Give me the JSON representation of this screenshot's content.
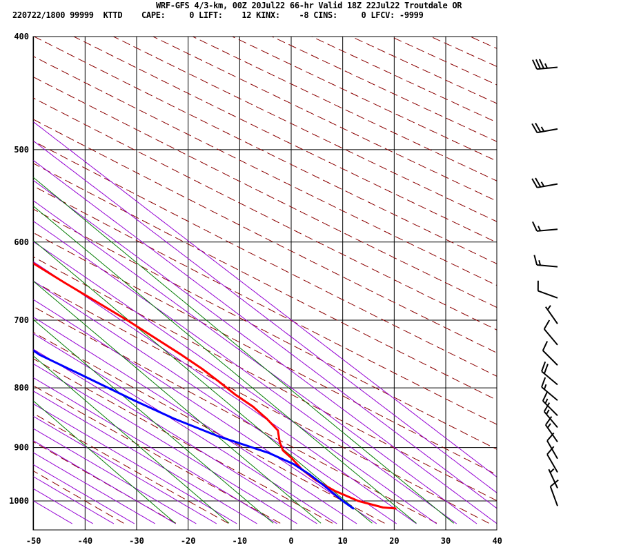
{
  "header": {
    "line1": "WRF-GFS 4/3-km, 00Z 20Jul22 66-hr Valid 18Z 22Jul22 Troutdale OR",
    "line2": "220722/1800 99999  KTTD    CAPE:     0 LIFT:    12 KINX:    -8 CINS:     0 LFCV: -9999"
  },
  "colors": {
    "temperature": "#ff0000",
    "dewpoint": "#0000ff",
    "isotherm": "#000000",
    "dry_adiabat": "#8b0000",
    "moist_adiabat": "#9400d3",
    "mixing_ratio": "#007a00",
    "wind_barb": "#000000"
  },
  "chart_data": {
    "type": "line",
    "chart_kind": "skew-T log-p sounding",
    "x_ticks": [
      "-50",
      "-40",
      "-30",
      "-20",
      "-10",
      "0",
      "10",
      "20",
      "30",
      "40"
    ],
    "y_ticks": [
      "400",
      "500",
      "600",
      "700",
      "800",
      "900",
      "1000"
    ],
    "xlim": [
      -50,
      40
    ],
    "ylim": [
      1040,
      400
    ],
    "y_scale": "log",
    "grid": true,
    "series": [
      {
        "key": "temperature",
        "p": [
          1015,
          1013,
          1000,
          980,
          960,
          940,
          920,
          905,
          890,
          870,
          850,
          830,
          810,
          790,
          770,
          750,
          700,
          650,
          600,
          550,
          500,
          470,
          450,
          420
        ],
        "values": [
          18.7,
          16.5,
          13.0,
          10.5,
          9.0,
          8.5,
          8.8,
          8.7,
          9.8,
          11.8,
          12.0,
          11.8,
          10.8,
          10.3,
          9.6,
          8.5,
          5.0,
          0.5,
          -4.0,
          -8.0,
          -12.0,
          -14.5,
          -16.0,
          -21.0
        ]
      },
      {
        "key": "dewpoint",
        "p": [
          1015,
          1000,
          970,
          950,
          930,
          910,
          880,
          850,
          820,
          780,
          750,
          700,
          650,
          600,
          550,
          500,
          470,
          450,
          420
        ],
        "values": [
          10.5,
          10.0,
          9.5,
          9.0,
          8.0,
          5.5,
          -1.0,
          -6.0,
          -10.0,
          -15.0,
          -19.0,
          -22.0,
          -25.0,
          -27.0,
          -33.0,
          -37.0,
          -39.0,
          -40.0,
          -40.0
        ]
      }
    ],
    "wind_barbs": [
      {
        "p": 1010,
        "dir": 340,
        "spd": 10
      },
      {
        "p": 975,
        "dir": 335,
        "spd": 5
      },
      {
        "p": 945,
        "dir": 330,
        "spd": 10
      },
      {
        "p": 920,
        "dir": 330,
        "spd": 10
      },
      {
        "p": 890,
        "dir": 325,
        "spd": 15
      },
      {
        "p": 865,
        "dir": 320,
        "spd": 15
      },
      {
        "p": 845,
        "dir": 315,
        "spd": 15
      },
      {
        "p": 820,
        "dir": 310,
        "spd": 15
      },
      {
        "p": 795,
        "dir": 310,
        "spd": 20
      },
      {
        "p": 765,
        "dir": 315,
        "spd": 10
      },
      {
        "p": 735,
        "dir": 320,
        "spd": 10
      },
      {
        "p": 705,
        "dir": 325,
        "spd": 5
      },
      {
        "p": 670,
        "dir": 290,
        "spd": 10
      },
      {
        "p": 630,
        "dir": 275,
        "spd": 15
      },
      {
        "p": 585,
        "dir": 265,
        "spd": 15
      },
      {
        "p": 535,
        "dir": 260,
        "spd": 25
      },
      {
        "p": 480,
        "dir": 260,
        "spd": 25
      },
      {
        "p": 425,
        "dir": 265,
        "spd": 35
      }
    ]
  }
}
